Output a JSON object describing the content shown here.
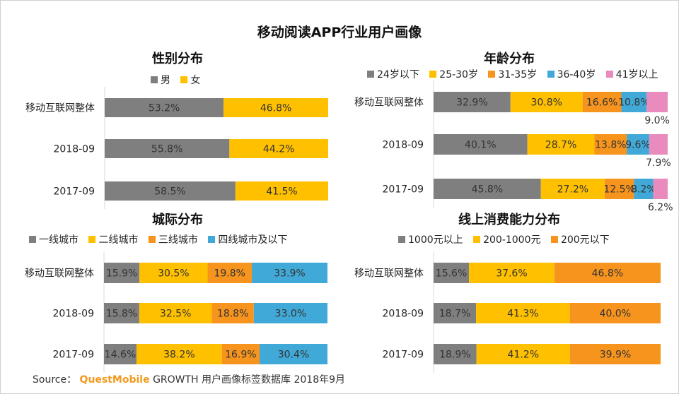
{
  "title": "移动阅读APP行业用户画像",
  "source": {
    "prefix": "Source：",
    "brand": "QuestMobile",
    "suffix": "GROWTH 用户画像标签数据库 2018年9月"
  },
  "colors": {
    "gray": "#7f7f7f",
    "yellow": "#ffc000",
    "orange": "#f7941d",
    "blue": "#41a9d8",
    "pink": "#e98bbd"
  },
  "chart_data": [
    {
      "type": "bar",
      "orientation": "horizontal-stacked-100",
      "title": "性别分布",
      "categories": [
        "移动互联网整体",
        "2018-09",
        "2017-09"
      ],
      "series": [
        {
          "name": "男",
          "color": "#7f7f7f",
          "values": [
            53.2,
            55.8,
            58.5
          ],
          "labels": [
            "53.2%",
            "55.8%",
            "58.5%"
          ]
        },
        {
          "name": "女",
          "color": "#ffc000",
          "values": [
            46.8,
            44.2,
            41.5
          ],
          "labels": [
            "46.8%",
            "44.2%",
            "41.5%"
          ]
        }
      ]
    },
    {
      "type": "bar",
      "orientation": "horizontal-stacked-100",
      "title": "年龄分布",
      "categories": [
        "移动互联网整体",
        "2018-09",
        "2017-09"
      ],
      "series": [
        {
          "name": "24岁以下",
          "color": "#7f7f7f",
          "values": [
            32.9,
            40.1,
            45.8
          ],
          "labels": [
            "32.9%",
            "40.1%",
            "45.8%"
          ]
        },
        {
          "name": "25-30岁",
          "color": "#ffc000",
          "values": [
            30.8,
            28.7,
            27.2
          ],
          "labels": [
            "30.8%",
            "28.7%",
            "27.2%"
          ]
        },
        {
          "name": "31-35岁",
          "color": "#f7941d",
          "values": [
            16.6,
            13.8,
            12.5
          ],
          "labels": [
            "16.6%",
            "13.8%",
            "12.5%"
          ]
        },
        {
          "name": "36-40岁",
          "color": "#41a9d8",
          "values": [
            10.8,
            9.6,
            8.2
          ],
          "labels": [
            "10.8%",
            "9.6%",
            "8.2%"
          ]
        },
        {
          "name": "41岁以上",
          "color": "#e98bbd",
          "values": [
            9.0,
            7.9,
            6.2
          ],
          "labels": [
            "9.0%",
            "7.9%",
            "6.2%"
          ],
          "label_position": "below"
        }
      ]
    },
    {
      "type": "bar",
      "orientation": "horizontal-stacked-100",
      "title": "城际分布",
      "categories": [
        "移动互联网整体",
        "2018-09",
        "2017-09"
      ],
      "series": [
        {
          "name": "一线城市",
          "color": "#7f7f7f",
          "values": [
            15.9,
            15.8,
            14.6
          ],
          "labels": [
            "15.9%",
            "15.8%",
            "14.6%"
          ]
        },
        {
          "name": "二线城市",
          "color": "#ffc000",
          "values": [
            30.5,
            32.5,
            38.2
          ],
          "labels": [
            "30.5%",
            "32.5%",
            "38.2%"
          ]
        },
        {
          "name": "三线城市",
          "color": "#f7941d",
          "values": [
            19.8,
            18.8,
            16.9
          ],
          "labels": [
            "19.8%",
            "18.8%",
            "16.9%"
          ]
        },
        {
          "name": "四线城市及以下",
          "color": "#41a9d8",
          "values": [
            33.9,
            33.0,
            30.4
          ],
          "labels": [
            "33.9%",
            "33.0%",
            "30.4%"
          ]
        }
      ]
    },
    {
      "type": "bar",
      "orientation": "horizontal-stacked-100",
      "title": "线上消费能力分布",
      "categories": [
        "移动互联网整体",
        "2018-09",
        "2017-09"
      ],
      "series": [
        {
          "name": "1000元以上",
          "color": "#7f7f7f",
          "values": [
            15.6,
            18.7,
            18.9
          ],
          "labels": [
            "15.6%",
            "18.7%",
            "18.9%"
          ]
        },
        {
          "name": "200-1000元",
          "color": "#ffc000",
          "values": [
            37.6,
            41.3,
            41.2
          ],
          "labels": [
            "37.6%",
            "41.3%",
            "41.2%"
          ]
        },
        {
          "name": "200元以下",
          "color": "#f7941d",
          "values": [
            46.8,
            40.0,
            39.9
          ],
          "labels": [
            "46.8%",
            "40.0%",
            "39.9%"
          ]
        }
      ]
    }
  ]
}
